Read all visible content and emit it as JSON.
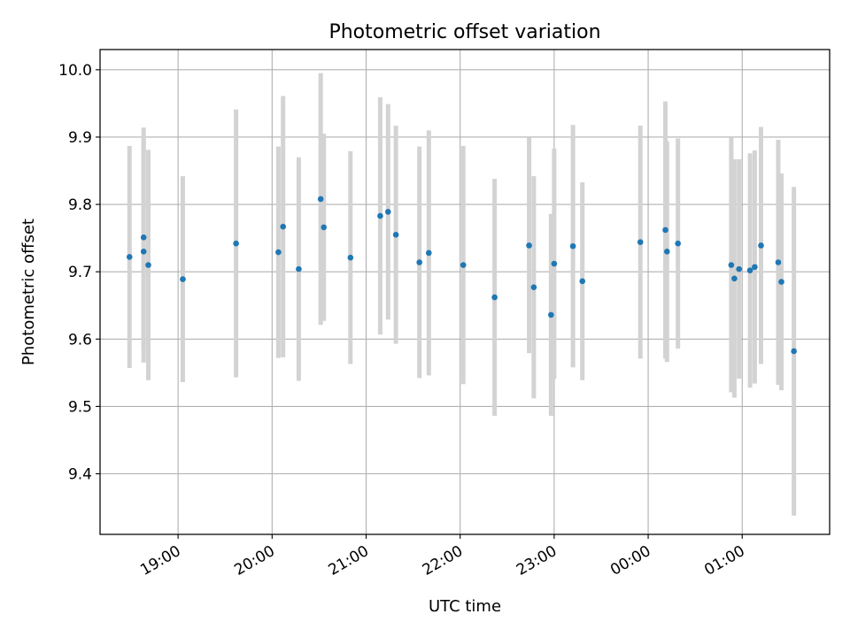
{
  "chart_data": {
    "type": "scatter",
    "title": "Photometric offset variation",
    "xlabel": "UTC time",
    "ylabel": "Photometric offset",
    "grid": true,
    "x_ticks": [
      "19:00",
      "20:00",
      "21:00",
      "22:00",
      "23:00",
      "00:00",
      "01:00"
    ],
    "y_ticks": [
      "9.4",
      "9.5",
      "9.6",
      "9.7",
      "9.8",
      "9.9",
      "10.0"
    ],
    "x_range_hours_from_midnight": [
      -5.83,
      1.93
    ],
    "ylim": [
      9.31,
      10.03
    ],
    "colors": {
      "point": "#1f77b4",
      "errorbar": "#d3d3d3",
      "grid": "#b0b0b0"
    },
    "series": [
      {
        "points": [
          {
            "x": "18:29",
            "y": 9.722,
            "err": 0.165
          },
          {
            "x": "18:38",
            "y": 9.73,
            "err": 0.165
          },
          {
            "x": "18:38",
            "y": 9.751,
            "err": 0.163
          },
          {
            "x": "18:41",
            "y": 9.71,
            "err": 0.171
          },
          {
            "x": "19:03",
            "y": 9.689,
            "err": 0.153
          },
          {
            "x": "19:37",
            "y": 9.742,
            "err": 0.199
          },
          {
            "x": "20:04",
            "y": 9.729,
            "err": 0.157
          },
          {
            "x": "20:07",
            "y": 9.767,
            "err": 0.194
          },
          {
            "x": "20:17",
            "y": 9.704,
            "err": 0.166
          },
          {
            "x": "20:31",
            "y": 9.808,
            "err": 0.187
          },
          {
            "x": "20:33",
            "y": 9.766,
            "err": 0.139
          },
          {
            "x": "20:50",
            "y": 9.721,
            "err": 0.158
          },
          {
            "x": "21:09",
            "y": 9.783,
            "err": 0.176
          },
          {
            "x": "21:14",
            "y": 9.789,
            "err": 0.16
          },
          {
            "x": "21:19",
            "y": 9.755,
            "err": 0.162
          },
          {
            "x": "21:34",
            "y": 9.714,
            "err": 0.172
          },
          {
            "x": "21:40",
            "y": 9.728,
            "err": 0.182
          },
          {
            "x": "22:02",
            "y": 9.71,
            "err": 0.177
          },
          {
            "x": "22:22",
            "y": 9.662,
            "err": 0.176
          },
          {
            "x": "22:44",
            "y": 9.739,
            "err": 0.16
          },
          {
            "x": "22:47",
            "y": 9.677,
            "err": 0.165
          },
          {
            "x": "22:58",
            "y": 9.636,
            "err": 0.15
          },
          {
            "x": "23:00",
            "y": 9.712,
            "err": 0.171
          },
          {
            "x": "23:12",
            "y": 9.738,
            "err": 0.18
          },
          {
            "x": "23:18",
            "y": 9.686,
            "err": 0.147
          },
          {
            "x": "23:55",
            "y": 9.744,
            "err": 0.173
          },
          {
            "x": "00:11",
            "y": 9.762,
            "err": 0.191
          },
          {
            "x": "00:12",
            "y": 9.73,
            "err": 0.164
          },
          {
            "x": "00:19",
            "y": 9.742,
            "err": 0.156
          },
          {
            "x": "00:53",
            "y": 9.71,
            "err": 0.189
          },
          {
            "x": "00:55",
            "y": 9.69,
            "err": 0.177
          },
          {
            "x": "00:58",
            "y": 9.704,
            "err": 0.163
          },
          {
            "x": "01:05",
            "y": 9.702,
            "err": 0.174
          },
          {
            "x": "01:08",
            "y": 9.707,
            "err": 0.173
          },
          {
            "x": "01:12",
            "y": 9.739,
            "err": 0.176
          },
          {
            "x": "01:23",
            "y": 9.714,
            "err": 0.182
          },
          {
            "x": "01:25",
            "y": 9.685,
            "err": 0.161
          },
          {
            "x": "01:33",
            "y": 9.582,
            "err": 0.244
          }
        ]
      }
    ]
  }
}
